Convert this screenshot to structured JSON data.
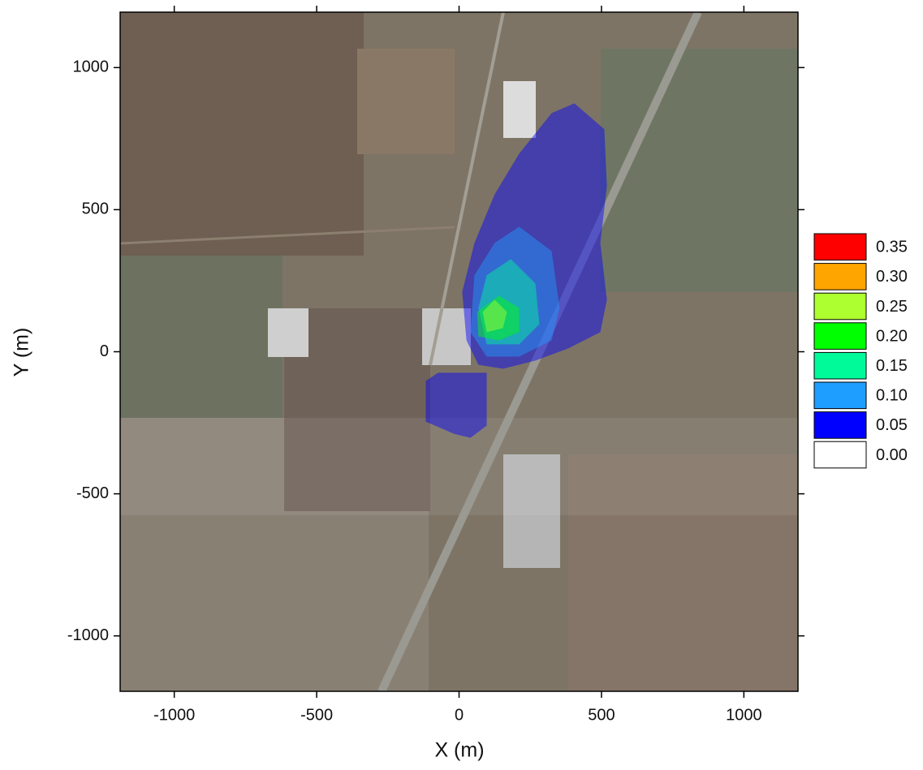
{
  "chart_data": {
    "type": "contour",
    "x_label": "X (m)",
    "y_label": "Y (m)",
    "xlim": [
      -1190,
      1190
    ],
    "ylim": [
      -1195,
      1195
    ],
    "xticks": [
      -1000,
      -500,
      0,
      500,
      1000
    ],
    "yticks": [
      -1000,
      -500,
      0,
      500,
      1000
    ],
    "legend_position": "right",
    "levels": [
      0.35,
      {
        "value": 0.3,
        "label": "0.30"
      },
      0.25,
      {
        "value": 0.2,
        "label": "0.20"
      },
      0.15,
      {
        "value": 0.1,
        "label": "0.10"
      },
      0.05,
      {
        "value": 0,
        "label": "0.00"
      }
    ],
    "level_colors": [
      "#ff0000",
      "#ffa500",
      "#adff2f",
      "#00ff00",
      "#00fa9a",
      "#1e9fff",
      "#0000ff",
      "#ffffff"
    ],
    "contours": [
      {
        "level": 0.05,
        "x": [
          405,
          510,
          519,
          496,
          519,
          496,
          382,
          268,
          154,
          68,
          26,
          11,
          54,
          125,
          211,
          325
        ],
        "y": [
          874,
          783,
          583,
          383,
          183,
          69,
          11,
          -31,
          -60,
          -46,
          40,
          211,
          383,
          554,
          697,
          840
        ]
      },
      {
        "level": 0.05,
        "x": [
          -117,
          -74,
          97,
          97,
          40,
          -17,
          -117
        ],
        "y": [
          -103,
          -74,
          -74,
          -260,
          -303,
          -289,
          -246
        ]
      },
      {
        "level": 0.1,
        "x": [
          211,
          325,
          353,
          325,
          211,
          97,
          40,
          54,
          125
        ],
        "y": [
          440,
          354,
          154,
          40,
          -17,
          -17,
          69,
          269,
          383
        ]
      },
      {
        "level": 0.15,
        "x": [
          182,
          268,
          282,
          211,
          97,
          68,
          97
        ],
        "y": [
          326,
          240,
          97,
          26,
          26,
          154,
          269
        ]
      },
      {
        "level": 0.2,
        "x": [
          140,
          211,
          211,
          140,
          68,
          63
        ],
        "y": [
          197,
          154,
          69,
          40,
          54,
          140
        ]
      },
      {
        "level": 0.25,
        "x": [
          125,
          168,
          154,
          97,
          83
        ],
        "y": [
          183,
          140,
          83,
          69,
          140
        ]
      }
    ]
  }
}
